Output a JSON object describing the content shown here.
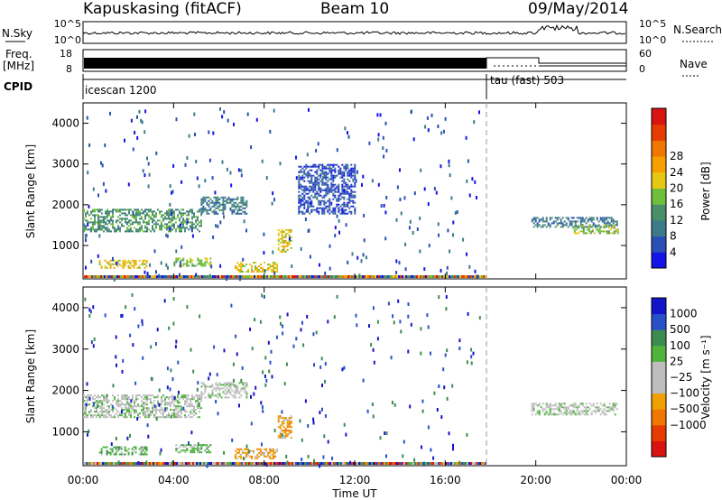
{
  "header": {
    "station": "Kapuskasing (fitACF)",
    "beam": "Beam 10",
    "date": "09/May/2014"
  },
  "params": {
    "nsky_label": "N.Sky",
    "nsearch_label": "N.Search",
    "freq_label": "Freq.",
    "freq_unit": "[MHz]",
    "nave_label": "Nave",
    "cpid_label": "CPID",
    "left_ticks_top": [
      "10^5",
      "10^0"
    ],
    "right_ticks_top": [
      "10^5",
      "10^0"
    ],
    "left_ticks_freq": [
      "18",
      "8"
    ],
    "right_ticks_nave": [
      "60",
      "0"
    ],
    "cpid_segments": [
      {
        "name": "icescan 1200",
        "start_h": 0
      },
      {
        "name": "tau (fast) 503",
        "start_h": 18
      }
    ]
  },
  "chart_data": [
    {
      "type": "heatmap",
      "name": "power",
      "ylabel": "Slant Range [km]",
      "yticks": [
        "1000",
        "2000",
        "3000",
        "4000"
      ],
      "ylim": [
        180,
        4500
      ],
      "xlim": [
        0,
        24
      ],
      "colorbar": {
        "label": "Power [dB]",
        "ticks": [
          "4",
          "8",
          "12",
          "16",
          "20",
          "24",
          "28"
        ],
        "colors": [
          "#1414e6",
          "#2a4fb5",
          "#3c7a8a",
          "#4a8f6a",
          "#6fbe3c",
          "#e6c814",
          "#f5a000",
          "#f07800",
          "#e63c00",
          "#d81410"
        ]
      },
      "bands": [
        {
          "t0": 0.0,
          "t1": 5.2,
          "r0": 1350,
          "r1": 1900,
          "level": 3
        },
        {
          "t0": 5.2,
          "t1": 7.2,
          "r0": 1800,
          "r1": 2200,
          "level": 2
        },
        {
          "t0": 0.7,
          "t1": 2.8,
          "r0": 450,
          "r1": 650,
          "level": 5
        },
        {
          "t0": 4.0,
          "t1": 5.6,
          "r0": 500,
          "r1": 700,
          "level": 4
        },
        {
          "t0": 6.7,
          "t1": 8.6,
          "r0": 350,
          "r1": 600,
          "level": 5
        },
        {
          "t0": 8.6,
          "t1": 9.2,
          "r0": 850,
          "r1": 1400,
          "level": 5
        },
        {
          "t0": 9.5,
          "t1": 12.0,
          "r0": 1800,
          "r1": 3000,
          "level": 1
        },
        {
          "t0": 19.8,
          "t1": 23.6,
          "r0": 1450,
          "r1": 1700,
          "level": 2
        },
        {
          "t0": 21.6,
          "t1": 23.6,
          "r0": 1300,
          "r1": 1500,
          "level": 4
        }
      ]
    },
    {
      "type": "heatmap",
      "name": "velocity",
      "ylabel": "Slant Range [km]",
      "yticks": [
        "1000",
        "2000",
        "3000",
        "4000"
      ],
      "ylim": [
        180,
        4500
      ],
      "xlim": [
        0,
        24
      ],
      "colorbar": {
        "label": "Velocity [m s⁻¹]",
        "ticks": [
          "1000",
          "500",
          "100",
          "25",
          "−25",
          "−100",
          "−500",
          "−1000"
        ],
        "colors": [
          "#1414c8",
          "#2850c8",
          "#3c8c50",
          "#50b43c",
          "#bebebe",
          "#bebebe",
          "#f0a000",
          "#f07800",
          "#e63c00",
          "#d81410"
        ]
      },
      "bands": [
        {
          "t0": 0.0,
          "t1": 5.2,
          "r0": 1350,
          "r1": 1900,
          "level": 4
        },
        {
          "t0": 5.2,
          "t1": 7.2,
          "r0": 1850,
          "r1": 2200,
          "level": 4
        },
        {
          "t0": 0.7,
          "t1": 2.8,
          "r0": 450,
          "r1": 650,
          "level": 3
        },
        {
          "t0": 4.0,
          "t1": 5.6,
          "r0": 500,
          "r1": 700,
          "level": 3
        },
        {
          "t0": 6.7,
          "t1": 8.6,
          "r0": 350,
          "r1": 600,
          "level": 6
        },
        {
          "t0": 8.6,
          "t1": 9.2,
          "r0": 850,
          "r1": 1400,
          "level": 6
        },
        {
          "t0": 19.8,
          "t1": 23.6,
          "r0": 1400,
          "r1": 1700,
          "level": 4
        }
      ]
    }
  ],
  "xaxis": {
    "label": "Time UT",
    "ticks": [
      "00:00",
      "04:00",
      "08:00",
      "12:00",
      "16:00",
      "20:00",
      "00:00"
    ]
  }
}
